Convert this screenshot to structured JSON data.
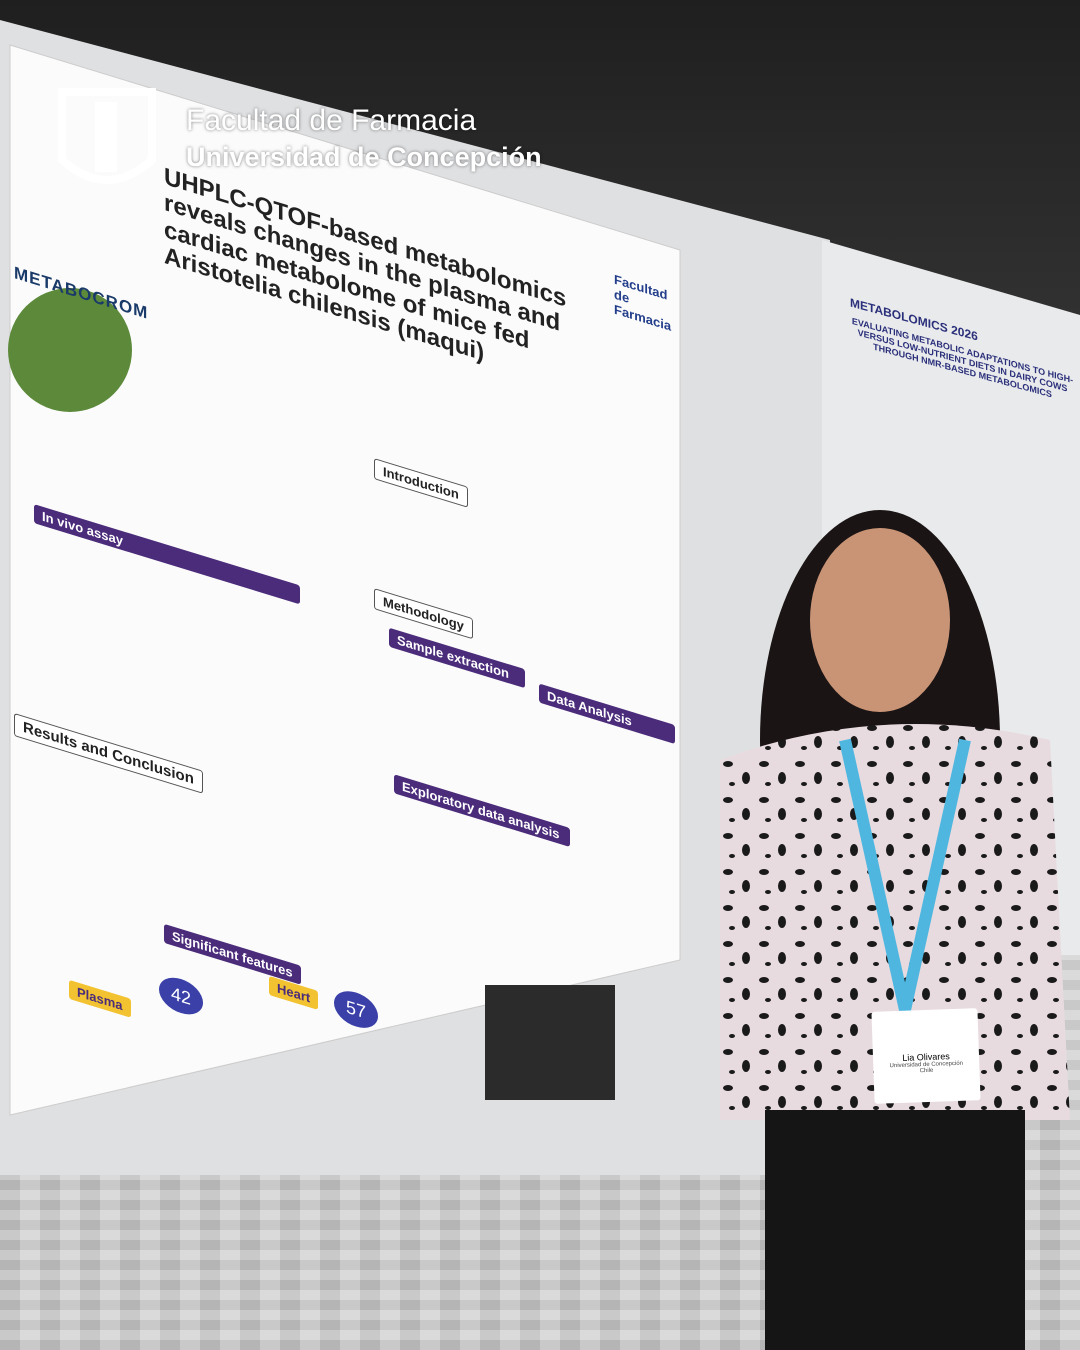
{
  "overlay": {
    "line1": "Facultad de Farmacia",
    "line2": "Universidad de Concepción"
  },
  "poster": {
    "title": "UHPLC-QTOF-based metabolomics reveals changes in the plasma and cardiac metabolome of mice fed Aristotelia chilensis (maqui)",
    "logo": "METABOCROM",
    "faculty": "Facultad de Farmacia",
    "sections": [
      "Introduction",
      "Methodology",
      "In vivo assay",
      "Sample extraction",
      "Data Analysis",
      "Results and Conclusion",
      "Exploratory data analysis",
      "Significant features",
      "Plasma",
      "Heart"
    ],
    "counts": [
      42,
      57
    ]
  },
  "second_poster": {
    "event": "METABOLOMICS 2026",
    "title": "EVALUATING METABOLIC ADAPTATIONS TO HIGH- VERSUS LOW-NUTRIENT DIETS IN DAIRY COWS THROUGH NMR-BASED METABOLOMICS"
  },
  "badge": {
    "name": "Lia Olivares",
    "affiliation": "Universidad de Concepción",
    "country": "Chile"
  }
}
